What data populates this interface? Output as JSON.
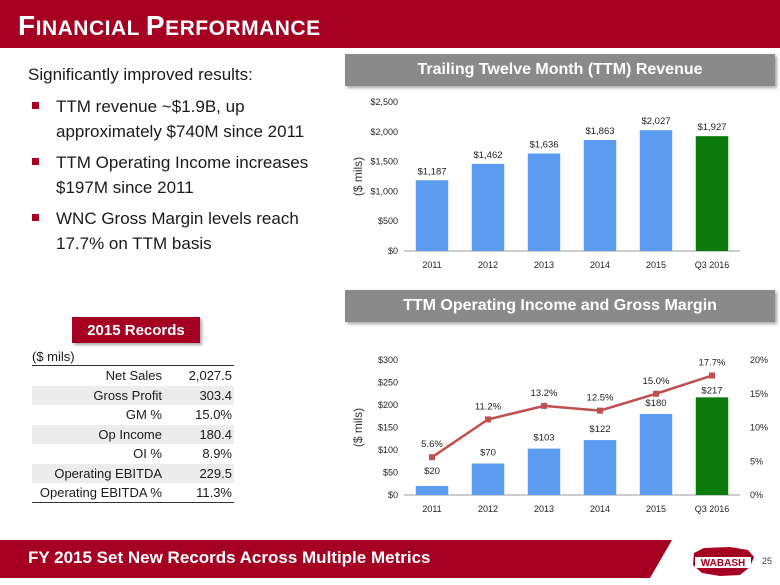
{
  "header": {
    "title_first_letter": "F",
    "title_rest1": "INANCIAL ",
    "title_second_letter": "P",
    "title_rest2": "ERFORMANCE"
  },
  "bullets": {
    "intro": "Significantly improved results:",
    "items": [
      "TTM revenue ~$1.9B, up approximately $740M since 2011",
      "TTM Operating Income increases $197M since 2011",
      "WNC Gross Margin levels reach 17.7% on TTM basis"
    ]
  },
  "records": {
    "badge": "2015 Records",
    "units": "($ mils)",
    "rows": [
      {
        "label": "Net Sales",
        "value": "2,027.5"
      },
      {
        "label": "Gross Profit",
        "value": "303.4"
      },
      {
        "label": "GM %",
        "value": "15.0%"
      },
      {
        "label": "Op Income",
        "value": "180.4"
      },
      {
        "label": "OI %",
        "value": "8.9%"
      },
      {
        "label": "Operating EBITDA",
        "value": "229.5"
      },
      {
        "label": "Operating EBITDA %",
        "value": "11.3%"
      }
    ]
  },
  "revenue_header": "Trailing Twelve Month (TTM) Revenue",
  "opincome_header": "TTM Operating Income and Gross Margin",
  "footer": {
    "text": "FY 2015 Set New Records Across Multiple Metrics",
    "page": "25",
    "logo_text": "WABASH"
  },
  "colors": {
    "brand": "#a50021",
    "bar_blue": "#5b9bf0",
    "bar_green": "#0a7a0a",
    "line_red": "#c0504d"
  },
  "chart_data": [
    {
      "type": "bar",
      "title": "Trailing Twelve Month (TTM) Revenue",
      "ylabel": "($ mils)",
      "categories": [
        "2011",
        "2012",
        "2013",
        "2014",
        "2015",
        "Q3 2016"
      ],
      "values": [
        1187,
        1462,
        1636,
        1863,
        2027,
        1927
      ],
      "value_labels": [
        "$1,187",
        "$1,462",
        "$1,636",
        "$1,863",
        "$2,027",
        "$1,927"
      ],
      "ylim": [
        0,
        2500
      ],
      "yticks": [
        0,
        500,
        1000,
        1500,
        2000,
        2500
      ],
      "ytick_labels": [
        "$0",
        "$500",
        "$1,000",
        "$1,500",
        "$2,000",
        "$2,500"
      ]
    },
    {
      "type": "bar",
      "title": "TTM Operating Income and Gross Margin",
      "ylabel": "($ mils)",
      "categories": [
        "2011",
        "2012",
        "2013",
        "2014",
        "2015",
        "Q3 2016"
      ],
      "values": [
        20,
        70,
        103,
        122,
        180,
        217
      ],
      "value_labels": [
        "$20",
        "$70",
        "$103",
        "$122",
        "$180",
        "$217"
      ],
      "ylim": [
        0,
        300
      ],
      "yticks": [
        0,
        50,
        100,
        150,
        200,
        250,
        300
      ],
      "ytick_labels": [
        "$0",
        "$50",
        "$100",
        "$150",
        "$200",
        "$250",
        "$300"
      ],
      "line_series": {
        "name": "Gross Margin",
        "values": [
          5.6,
          11.2,
          13.2,
          12.5,
          15.0,
          17.7
        ],
        "labels": [
          "5.6%",
          "11.2%",
          "13.2%",
          "12.5%",
          "15.0%",
          "17.7%"
        ]
      },
      "y2lim": [
        0,
        20
      ],
      "y2ticks": [
        0,
        5,
        10,
        15,
        20
      ],
      "y2tick_labels": [
        "0%",
        "5%",
        "10%",
        "15%",
        "20%"
      ]
    }
  ]
}
